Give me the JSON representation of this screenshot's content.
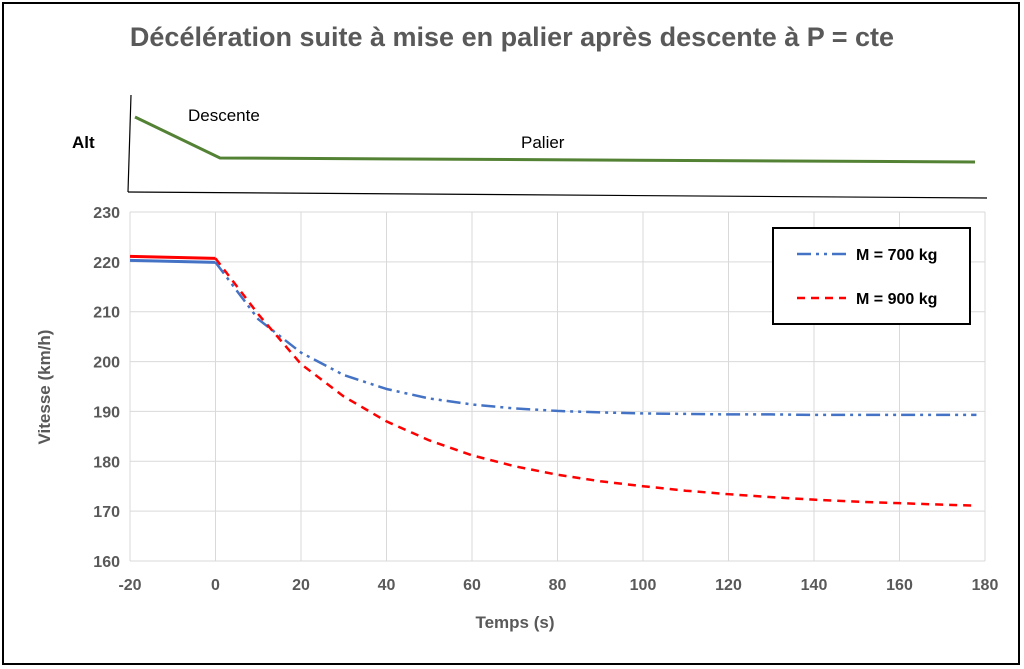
{
  "chart_data": {
    "type": "line",
    "title": "Décélération suite à mise en palier après descente à P = cte",
    "xlabel": "Temps (s)",
    "ylabel": "Vitesse (km/h)",
    "xlim": [
      -20,
      180
    ],
    "ylim": [
      160,
      230
    ],
    "x_ticks": [
      -20,
      0,
      20,
      40,
      60,
      80,
      100,
      120,
      140,
      160,
      180
    ],
    "y_ticks": [
      160,
      170,
      180,
      190,
      200,
      210,
      220,
      230
    ],
    "grid": true,
    "legend_position": "top-right",
    "series": [
      {
        "name": "M = 700 kg",
        "color": "#4472C4",
        "style": "dash-dot",
        "x": [
          -20,
          0,
          10,
          20,
          30,
          40,
          50,
          60,
          70,
          80,
          90,
          100,
          110,
          120,
          130,
          140,
          150,
          160,
          170,
          178
        ],
        "y": [
          220.3,
          219.9,
          208.5,
          201.8,
          197.3,
          194.5,
          192.6,
          191.4,
          190.6,
          190.1,
          189.8,
          189.6,
          189.5,
          189.4,
          189.4,
          189.3,
          189.3,
          189.3,
          189.3,
          189.3
        ]
      },
      {
        "name": "M = 900 kg",
        "color": "#FF0000",
        "style": "dashed",
        "x": [
          -20,
          0,
          10,
          20,
          30,
          40,
          50,
          60,
          70,
          80,
          90,
          100,
          110,
          120,
          130,
          140,
          150,
          160,
          170,
          178
        ],
        "y": [
          221.1,
          220.7,
          209.5,
          199.5,
          193.0,
          188.0,
          184.2,
          181.2,
          179.0,
          177.3,
          176.0,
          175.0,
          174.1,
          173.4,
          172.8,
          172.3,
          171.9,
          171.6,
          171.3,
          171.1
        ]
      }
    ]
  },
  "altitude_panel": {
    "label": "Alt",
    "phase_descent": "Descente",
    "phase_level": "Palier",
    "line_color": "#548235"
  }
}
